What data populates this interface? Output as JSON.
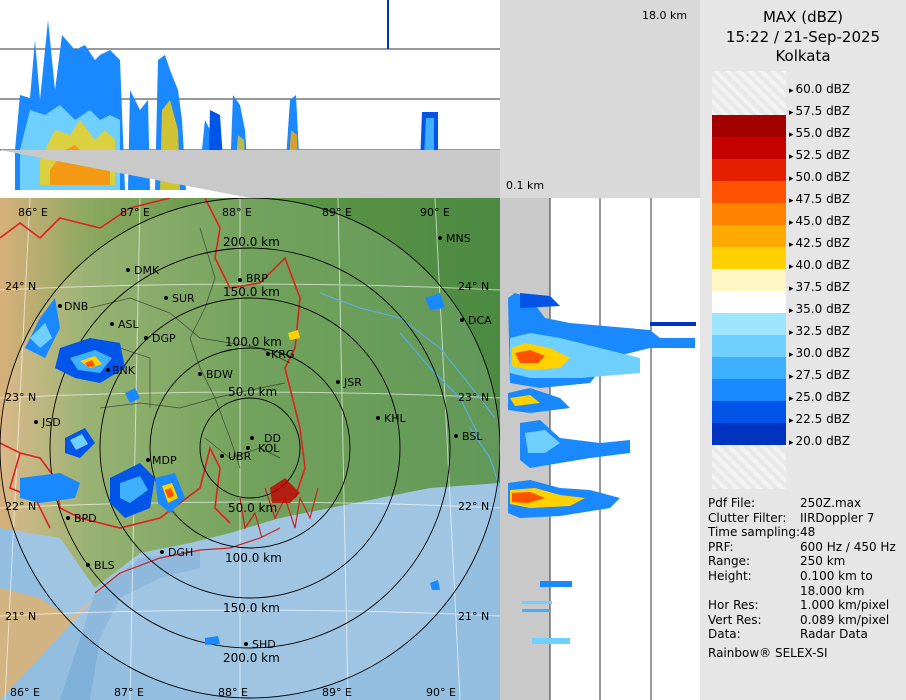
{
  "product": {
    "title": "MAX (dBZ)",
    "datetime": "15:22 / 21-Sep-2025",
    "station": "Kolkata"
  },
  "height_panel": {
    "top_label": "18.0 km",
    "bottom_label": "0.1 km"
  },
  "legend": [
    {
      "label": "60.0 dBZ",
      "color": "#f1f1f1"
    },
    {
      "label": "57.5 dBZ",
      "color": "#a30000"
    },
    {
      "label": "55.0 dBZ",
      "color": "#c40000"
    },
    {
      "label": "52.5 dBZ",
      "color": "#e41e00"
    },
    {
      "label": "50.0 dBZ",
      "color": "#ff5200"
    },
    {
      "label": "47.5 dBZ",
      "color": "#ff8200"
    },
    {
      "label": "45.0 dBZ",
      "color": "#ffaa00"
    },
    {
      "label": "42.5 dBZ",
      "color": "#ffd100"
    },
    {
      "label": "40.0 dBZ",
      "color": "#fff6c4"
    },
    {
      "label": "37.5 dBZ",
      "color": "#ffffff"
    },
    {
      "label": "35.0 dBZ",
      "color": "#9ee6ff"
    },
    {
      "label": "32.5 dBZ",
      "color": "#6fd0ff"
    },
    {
      "label": "30.0 dBZ",
      "color": "#3fb0ff"
    },
    {
      "label": "27.5 dBZ",
      "color": "#1a88ff"
    },
    {
      "label": "25.0 dBZ",
      "color": "#0055e8"
    },
    {
      "label": "22.5 dBZ",
      "color": "#0033c0"
    },
    {
      "label": "20.0 dBZ",
      "color": "#001a96"
    }
  ],
  "info": [
    {
      "key": "Pdf File:",
      "value": "250Z.max"
    },
    {
      "key": "Clutter Filter:",
      "value": "IIRDoppler 7"
    },
    {
      "key": "Time sampling:",
      "value": "48"
    },
    {
      "key": "PRF:",
      "value": "600 Hz / 450 Hz"
    },
    {
      "key": "Range:",
      "value": "250 km"
    },
    {
      "key": "Height:",
      "value": "0.100 km to"
    },
    {
      "key": "",
      "value": "18.000 km"
    },
    {
      "key": "Hor Res:",
      "value": "1.000 km/pixel"
    },
    {
      "key": "Vert Res:",
      "value": "0.089 km/pixel"
    },
    {
      "key": "Data:",
      "value": "Radar Data"
    }
  ],
  "footer": "Rainbow® SELEX-SI",
  "map": {
    "lon_top": [
      "86° E",
      "87° E",
      "88° E",
      "89° E",
      "90° E"
    ],
    "lon_bottom": [
      "86° E",
      "87° E",
      "88° E",
      "89° E",
      "90° E"
    ],
    "lat_left": [
      "24° N",
      "23° N",
      "22° N",
      "21° N"
    ],
    "lat_right": [
      "24° N",
      "23° N",
      "22° N",
      "21° N"
    ],
    "ranges": [
      "50.0 km",
      "100.0 km",
      "150.0 km",
      "200.0 km",
      "50.0 km",
      "100.0 km",
      "150.0 km",
      "200.0 km"
    ],
    "cities": [
      {
        "name": "MNS"
      },
      {
        "name": "DMK"
      },
      {
        "name": "BRP"
      },
      {
        "name": "SUR"
      },
      {
        "name": "DNB"
      },
      {
        "name": "ASL"
      },
      {
        "name": "DGP"
      },
      {
        "name": "DCA"
      },
      {
        "name": "KRG"
      },
      {
        "name": "BNK"
      },
      {
        "name": "BDW"
      },
      {
        "name": "JSR"
      },
      {
        "name": "JSD"
      },
      {
        "name": "KHL"
      },
      {
        "name": "DD"
      },
      {
        "name": "KOL"
      },
      {
        "name": "BSL"
      },
      {
        "name": "MDP"
      },
      {
        "name": "UBR"
      },
      {
        "name": "BPD"
      },
      {
        "name": "DGH"
      },
      {
        "name": "BLS"
      },
      {
        "name": "SHD"
      }
    ]
  }
}
